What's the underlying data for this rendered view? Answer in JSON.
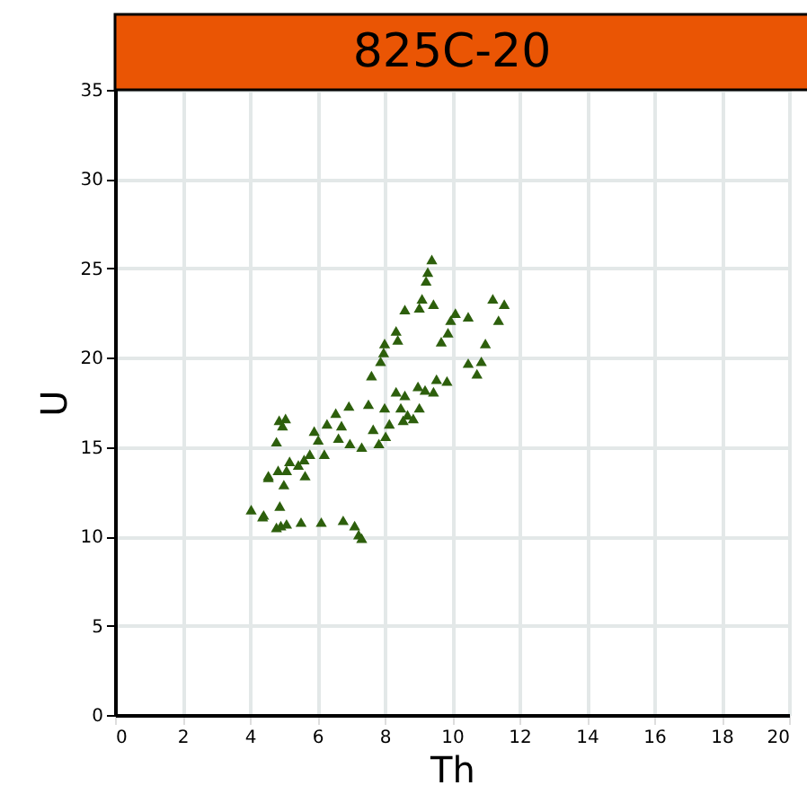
{
  "chart_data": {
    "type": "scatter",
    "title": "825C-20",
    "xlabel": "Th",
    "ylabel": "U",
    "xlim": [
      0,
      20
    ],
    "xticks": [
      0,
      2,
      4,
      6,
      8,
      10,
      12,
      14,
      16,
      18,
      20
    ],
    "ylim": [
      0,
      35
    ],
    "yticks": [
      0,
      5,
      10,
      15,
      20,
      25,
      30,
      35
    ],
    "grid": true,
    "marker": "triangle",
    "series": [
      {
        "color": "#2d5f0c",
        "x": [
          9.4,
          9.28,
          9.23,
          9.11,
          9.45,
          9.03,
          8.6,
          11.21,
          11.55,
          11.38,
          10.1,
          10.48,
          9.96,
          9.88,
          8.34,
          8.39,
          10.99,
          9.68,
          8.0,
          7.97,
          7.88,
          10.48,
          10.87,
          10.74,
          7.61,
          9.54,
          9.85,
          8.99,
          9.2,
          9.45,
          8.34,
          8.6,
          7.52,
          8.0,
          8.48,
          9.03,
          8.68,
          8.85,
          8.55,
          8.14,
          6.94,
          6.55,
          6.29,
          6.72,
          7.66,
          5.06,
          4.97,
          5.91,
          6.03,
          6.63,
          6.97,
          7.32,
          7.83,
          8.03,
          6.21,
          5.78,
          5.61,
          5.44,
          5.18,
          5.09,
          4.55,
          5.64,
          5.01,
          4.89,
          4.41,
          4.92,
          5.09,
          5.52,
          6.12,
          6.77,
          7.11,
          7.23,
          7.32,
          4.87,
          4.79,
          4.84,
          4.55,
          4.04,
          4.38,
          4.79
        ],
        "values": [
          25.5,
          24.8,
          24.3,
          23.3,
          23.0,
          22.8,
          22.7,
          23.3,
          23.0,
          22.1,
          22.5,
          22.3,
          22.1,
          21.4,
          21.5,
          21.0,
          20.8,
          20.9,
          20.8,
          20.3,
          19.8,
          19.7,
          19.8,
          19.1,
          19.0,
          18.8,
          18.7,
          18.4,
          18.2,
          18.1,
          18.1,
          17.9,
          17.4,
          17.2,
          17.2,
          17.2,
          16.8,
          16.6,
          16.5,
          16.3,
          17.3,
          16.9,
          16.3,
          16.2,
          16.0,
          16.6,
          16.2,
          15.9,
          15.4,
          15.5,
          15.2,
          15.0,
          15.2,
          15.6,
          14.6,
          14.6,
          14.3,
          14.0,
          14.2,
          13.7,
          13.4,
          13.4,
          12.9,
          11.7,
          11.2,
          10.6,
          10.7,
          10.8,
          10.8,
          10.9,
          10.6,
          10.1,
          9.9,
          16.5,
          15.3,
          13.7,
          13.3,
          11.5,
          11.1,
          10.5
        ]
      }
    ]
  }
}
